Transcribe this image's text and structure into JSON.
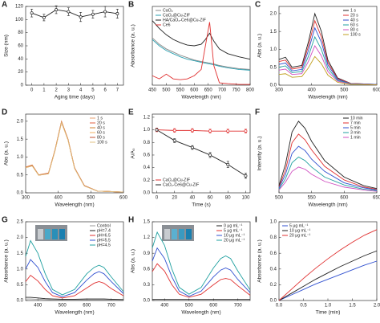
{
  "chart_data": [
    {
      "type": "line",
      "label": "A",
      "xlabel": "Aging time (days)",
      "ylabel": "Size (nm)",
      "marker": true,
      "color": "#222222",
      "x": [
        0,
        1,
        2,
        3,
        4,
        5,
        6,
        7
      ],
      "values": [
        110,
        103,
        115,
        112,
        104,
        108,
        112,
        109
      ],
      "errors": [
        6,
        5,
        6,
        6,
        7,
        6,
        8,
        7
      ],
      "xlim": [
        -0.5,
        7.5
      ],
      "xticks": [
        0,
        1,
        2,
        3,
        4,
        5,
        6,
        7
      ],
      "ylim": [
        0,
        120
      ],
      "yticks": [
        0,
        20,
        40,
        60,
        80,
        100,
        120
      ]
    },
    {
      "type": "line",
      "label": "B",
      "xlabel": "Wavelength (nm)",
      "ylabel": "Absorbance (a. u.)",
      "legend": "upper left",
      "x": [
        450,
        475,
        500,
        525,
        550,
        575,
        600,
        625,
        640,
        655,
        670,
        690,
        720,
        760,
        800
      ],
      "series": [
        {
          "name": "CaO₂",
          "color": "#888888",
          "values": [
            0.6,
            0.52,
            0.46,
            0.42,
            0.38,
            0.35,
            0.32,
            0.3,
            0.29,
            0.28,
            0.27,
            0.25,
            0.23,
            0.21,
            0.2
          ]
        },
        {
          "name": "CaO₂@Cu-ZIF",
          "color": "#2a9fb0",
          "values": [
            0.58,
            0.5,
            0.44,
            0.4,
            0.36,
            0.33,
            0.31,
            0.29,
            0.28,
            0.27,
            0.26,
            0.24,
            0.22,
            0.2,
            0.19
          ]
        },
        {
          "name": "HA/CaO₂-Ce6@Cu-ZIF",
          "color": "#222222",
          "values": [
            0.82,
            0.72,
            0.64,
            0.58,
            0.54,
            0.51,
            0.5,
            0.52,
            0.58,
            0.66,
            0.56,
            0.46,
            0.4,
            0.36,
            0.33
          ]
        },
        {
          "name": "Ce6",
          "color": "#e03030",
          "values": [
            0.12,
            0.08,
            0.14,
            0.08,
            0.07,
            0.08,
            0.12,
            0.2,
            0.5,
            0.8,
            0.25,
            0.03,
            0.02,
            0.01,
            0.01
          ]
        }
      ],
      "xlim": [
        450,
        800
      ],
      "xticks": [
        450,
        500,
        550,
        600,
        650,
        700,
        750,
        800
      ],
      "ylim": [
        0,
        1
      ]
    },
    {
      "type": "line",
      "label": "C",
      "xlabel": "Wavelength (nm)",
      "ylabel": "Abs (a. u.)",
      "legend": "upper right",
      "x": [
        300,
        320,
        340,
        370,
        390,
        410,
        430,
        450,
        480,
        520,
        600
      ],
      "series": [
        {
          "name": "1 s",
          "color": "#222222",
          "values": [
            0.72,
            0.78,
            0.5,
            0.55,
            1.2,
            2.0,
            1.5,
            0.7,
            0.2,
            0.05,
            0.02
          ]
        },
        {
          "name": "20 s",
          "color": "#e03030",
          "values": [
            0.66,
            0.7,
            0.45,
            0.5,
            1.08,
            1.8,
            1.35,
            0.63,
            0.18,
            0.05,
            0.02
          ]
        },
        {
          "name": "40 s",
          "color": "#3050d0",
          "values": [
            0.58,
            0.62,
            0.4,
            0.44,
            0.96,
            1.6,
            1.2,
            0.56,
            0.16,
            0.04,
            0.02
          ]
        },
        {
          "name": "60 s",
          "color": "#20a0a0",
          "values": [
            0.5,
            0.54,
            0.35,
            0.38,
            0.8,
            1.35,
            1.0,
            0.47,
            0.13,
            0.04,
            0.01
          ]
        },
        {
          "name": "80 s",
          "color": "#d050c0",
          "values": [
            0.42,
            0.45,
            0.3,
            0.32,
            0.66,
            1.1,
            0.82,
            0.38,
            0.11,
            0.03,
            0.01
          ]
        },
        {
          "name": "100 s",
          "color": "#c0a020",
          "values": [
            0.3,
            0.32,
            0.22,
            0.24,
            0.48,
            0.8,
            0.6,
            0.28,
            0.08,
            0.02,
            0.01
          ]
        }
      ],
      "xlim": [
        300,
        600
      ],
      "xticks": [
        300,
        400,
        500,
        600
      ],
      "ylim": [
        0,
        2.2
      ],
      "yticks": [
        {
          "value": 0,
          "label": "0.0"
        },
        0.5,
        {
          "value": 1,
          "label": "1.0"
        },
        1.5,
        {
          "value": 2,
          "label": "2.0"
        }
      ]
    },
    {
      "type": "line",
      "label": "D",
      "xlabel": "Wavelength (nm)",
      "ylabel": "Abs (a. u.)",
      "legend": "upper right",
      "x": [
        300,
        320,
        340,
        370,
        390,
        410,
        430,
        450,
        480,
        520,
        600
      ],
      "series": [
        {
          "name": "1 s",
          "color": "#e8a070",
          "values": [
            0.72,
            0.78,
            0.5,
            0.55,
            1.2,
            2.0,
            1.5,
            0.7,
            0.2,
            0.05,
            0.02
          ]
        },
        {
          "name": "20 s",
          "color": "#e06040",
          "values": [
            0.72,
            0.77,
            0.5,
            0.55,
            1.19,
            1.99,
            1.49,
            0.7,
            0.2,
            0.05,
            0.02
          ]
        },
        {
          "name": "40 s",
          "color": "#d08030",
          "values": [
            0.71,
            0.77,
            0.5,
            0.54,
            1.19,
            1.98,
            1.49,
            0.69,
            0.2,
            0.05,
            0.02
          ]
        },
        {
          "name": "60 s",
          "color": "#f0b060",
          "values": [
            0.71,
            0.76,
            0.49,
            0.54,
            1.18,
            1.98,
            1.48,
            0.69,
            0.2,
            0.05,
            0.02
          ]
        },
        {
          "name": "80 s",
          "color": "#c05030",
          "values": [
            0.7,
            0.76,
            0.49,
            0.54,
            1.18,
            1.97,
            1.48,
            0.69,
            0.2,
            0.05,
            0.02
          ]
        },
        {
          "name": "100 s",
          "color": "#e0c080",
          "values": [
            0.7,
            0.75,
            0.49,
            0.53,
            1.17,
            1.96,
            1.47,
            0.68,
            0.19,
            0.05,
            0.02
          ]
        }
      ],
      "xlim": [
        300,
        600
      ],
      "xticks": [
        300,
        400,
        500,
        600
      ],
      "ylim": [
        0,
        2.2
      ],
      "yticks": [
        {
          "value": 0,
          "label": "0.0"
        },
        0.5,
        {
          "value": 1,
          "label": "1.0"
        },
        1.5,
        {
          "value": 2,
          "label": "2.0"
        }
      ]
    },
    {
      "type": "line",
      "label": "E",
      "xlabel": "Time (s)",
      "ylabel": "A/A₀",
      "legend": "lower left",
      "marker": true,
      "x": [
        0,
        20,
        40,
        60,
        80,
        100
      ],
      "series": [
        {
          "name": "CaO₂@Cu-ZIF",
          "color": "#e03030",
          "values": [
            1.0,
            0.99,
            0.99,
            0.98,
            0.98,
            0.98
          ],
          "errors": [
            0.03,
            0.03,
            0.03,
            0.03,
            0.03,
            0.03
          ]
        },
        {
          "name": "CaO₂-Ce6@Cu-ZIF",
          "color": "#222222",
          "values": [
            1.0,
            0.83,
            0.72,
            0.6,
            0.45,
            0.27
          ],
          "errors": [
            0.02,
            0.03,
            0.03,
            0.04,
            0.05,
            0.04
          ]
        }
      ],
      "xlim": [
        -5,
        105
      ],
      "xticks": [
        0,
        20,
        40,
        60,
        80,
        100
      ],
      "ylim": [
        0,
        1.25
      ],
      "yticks": [
        {
          "value": 0,
          "label": "0.0"
        },
        0.2,
        0.4,
        0.6,
        0.8,
        {
          "value": 1,
          "label": "1.0"
        },
        1.2
      ]
    },
    {
      "type": "line",
      "label": "F",
      "xlabel": "Wavelength (nm)",
      "ylabel": "Intensity (a. u.)",
      "legend": "upper right",
      "x": [
        500,
        510,
        520,
        530,
        540,
        550,
        570,
        600,
        630,
        650
      ],
      "series": [
        {
          "name": "10 min",
          "color": "#222222",
          "values": [
            0.1,
            0.4,
            0.85,
            1.0,
            0.9,
            0.72,
            0.45,
            0.22,
            0.1,
            0.06
          ]
        },
        {
          "name": "7 min",
          "color": "#e03030",
          "values": [
            0.08,
            0.32,
            0.7,
            0.82,
            0.74,
            0.6,
            0.37,
            0.18,
            0.08,
            0.05
          ]
        },
        {
          "name": "5 min",
          "color": "#3050d0",
          "values": [
            0.07,
            0.26,
            0.55,
            0.65,
            0.59,
            0.47,
            0.3,
            0.14,
            0.07,
            0.04
          ]
        },
        {
          "name": "3 min",
          "color": "#20a0a0",
          "values": [
            0.05,
            0.2,
            0.42,
            0.5,
            0.45,
            0.36,
            0.22,
            0.11,
            0.05,
            0.03
          ]
        },
        {
          "name": "1 min",
          "color": "#d050c0",
          "values": [
            0.04,
            0.15,
            0.3,
            0.36,
            0.33,
            0.26,
            0.16,
            0.08,
            0.04,
            0.02
          ]
        }
      ],
      "xlim": [
        500,
        650
      ],
      "xticks": [
        500,
        550,
        600,
        650
      ],
      "ylim": [
        0,
        1.1
      ]
    },
    {
      "type": "line",
      "label": "G",
      "xlabel": "Wavelength (nm)",
      "ylabel": "Absorbance (a. u.)",
      "legend": "upper right",
      "x": [
        350,
        370,
        400,
        430,
        460,
        500,
        550,
        600,
        630,
        650,
        670,
        700,
        750
      ],
      "series": [
        {
          "name": "Control",
          "color": "#999999",
          "values": [
            0.05,
            0.05,
            0.04,
            0.03,
            0.02,
            0.02,
            0.02,
            0.02,
            0.02,
            0.02,
            0.02,
            0.02,
            0.02
          ]
        },
        {
          "name": "pH=7.4",
          "color": "#222222",
          "values": [
            0.1,
            0.1,
            0.08,
            0.06,
            0.05,
            0.04,
            0.04,
            0.05,
            0.05,
            0.05,
            0.05,
            0.04,
            0.03
          ]
        },
        {
          "name": "pH=6.5",
          "color": "#e03030",
          "values": [
            0.6,
            0.8,
            0.62,
            0.35,
            0.15,
            0.08,
            0.15,
            0.4,
            0.55,
            0.6,
            0.55,
            0.38,
            0.15
          ]
        },
        {
          "name": "pH=5.5",
          "color": "#3050d0",
          "values": [
            1.0,
            1.3,
            1.05,
            0.6,
            0.25,
            0.12,
            0.25,
            0.65,
            0.85,
            0.92,
            0.85,
            0.6,
            0.22
          ]
        },
        {
          "name": "pH=4.5",
          "color": "#20a0a0",
          "values": [
            1.4,
            1.9,
            1.5,
            0.85,
            0.35,
            0.18,
            0.35,
            0.85,
            1.05,
            1.12,
            1.05,
            0.75,
            0.28
          ]
        }
      ],
      "xlim": [
        350,
        750
      ],
      "xticks": [
        400,
        500,
        600,
        700
      ],
      "ylim": [
        0,
        2.5
      ],
      "yticks": [
        {
          "value": 0,
          "label": "0.0"
        },
        0.5,
        {
          "value": 1,
          "label": "1.0"
        },
        1.5,
        {
          "value": 2,
          "label": "2.0"
        },
        2.5
      ]
    },
    {
      "type": "line",
      "label": "H",
      "xlabel": "Wavelength (nm)",
      "ylabel": "Abs (a. u.)",
      "legend": "upper right",
      "x": [
        350,
        370,
        400,
        430,
        460,
        500,
        550,
        600,
        630,
        650,
        670,
        700,
        750
      ],
      "series": [
        {
          "name": "0 μg mL⁻¹",
          "color": "#222222",
          "values": [
            0.02,
            0.02,
            0.02,
            0.02,
            0.02,
            0.02,
            0.02,
            0.02,
            0.02,
            0.02,
            0.02,
            0.02,
            0.02
          ]
        },
        {
          "name": "5 μg mL⁻¹",
          "color": "#e03030",
          "values": [
            0.55,
            0.7,
            0.56,
            0.3,
            0.12,
            0.06,
            0.12,
            0.3,
            0.4,
            0.42,
            0.4,
            0.28,
            0.1
          ]
        },
        {
          "name": "10 μg mL⁻¹",
          "color": "#3050d0",
          "values": [
            0.75,
            1.0,
            0.8,
            0.45,
            0.18,
            0.08,
            0.18,
            0.45,
            0.58,
            0.62,
            0.58,
            0.4,
            0.15
          ]
        },
        {
          "name": "20 μg mL⁻¹",
          "color": "#20a0a0",
          "values": [
            1.0,
            1.3,
            1.05,
            0.6,
            0.25,
            0.12,
            0.25,
            0.62,
            0.8,
            0.85,
            0.8,
            0.56,
            0.2
          ]
        }
      ],
      "xlim": [
        350,
        750
      ],
      "xticks": [
        400,
        500,
        600,
        700
      ],
      "ylim": [
        0,
        1.5
      ],
      "yticks": [
        {
          "value": 0,
          "label": "0.0"
        },
        0.3,
        0.6,
        0.9,
        1.2,
        1.5
      ]
    },
    {
      "type": "line",
      "label": "I",
      "xlabel": "Time (min)",
      "ylabel": "Absorbance (a. u.)",
      "legend": "upper left",
      "x": [
        0,
        0.25,
        0.5,
        0.75,
        1.0,
        1.25,
        1.5,
        1.75,
        2.0
      ],
      "series": [
        {
          "name": "5 μg mL⁻¹",
          "color": "#3050d0",
          "values": [
            0,
            0.07,
            0.14,
            0.21,
            0.27,
            0.33,
            0.39,
            0.45,
            0.5
          ]
        },
        {
          "name": "10 μg mL⁻¹",
          "color": "#222222",
          "values": [
            0,
            0.09,
            0.18,
            0.27,
            0.35,
            0.43,
            0.5,
            0.57,
            0.63
          ]
        },
        {
          "name": "20 μg mL⁻¹",
          "color": "#e03030",
          "values": [
            0,
            0.14,
            0.28,
            0.41,
            0.53,
            0.64,
            0.74,
            0.83,
            0.9
          ]
        }
      ],
      "xlim": [
        0,
        2
      ],
      "xticks": [
        {
          "value": 0,
          "label": "0.0"
        },
        0.5,
        {
          "value": 1,
          "label": "1.0"
        },
        1.5,
        {
          "value": 2,
          "label": "2.0"
        }
      ],
      "ylim": [
        0,
        1
      ],
      "yticks": [
        {
          "value": 0,
          "label": "0.0"
        },
        0.2,
        0.4,
        0.6,
        0.8,
        {
          "value": 1,
          "label": "1.0"
        }
      ]
    }
  ]
}
